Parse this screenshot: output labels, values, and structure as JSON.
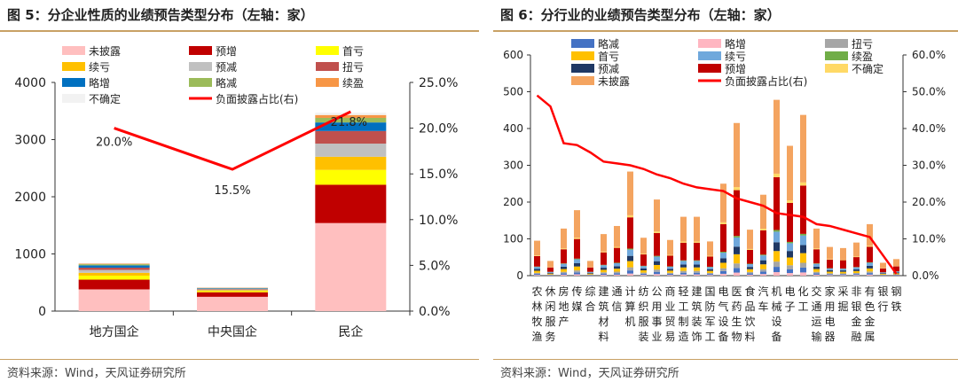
{
  "figures": [
    {
      "title": "图 5：分企业性质的业绩预告类型分布（左轴：家）",
      "source": "资料来源：Wind，天风证券研究所"
    },
    {
      "title": "图 6：分行业的业绩预告类型分布（左轴：家）",
      "source": "资料来源：Wind，天风证券研究所"
    }
  ],
  "colors": {
    "未披露": "#ffbfbf",
    "预增": "#c00000",
    "首亏": "#ffff00",
    "续亏": "#ffc000",
    "预减": "#c0c0c0",
    "扭亏": "#c0504d",
    "略增": "#0070c0",
    "略减": "#9bbb59",
    "续盈": "#f79646",
    "不确定": "#f2f2f2",
    "line": "#ff0000",
    "右_未披露": "#f4a460",
    "右_预增": "#c00000",
    "右_首亏": "#ffc000",
    "右_续亏": "#6fa8dc",
    "右_预减": "#1f3864",
    "右_扭亏": "#a6a6a6",
    "右_略增": "#ffb6c1",
    "右_略减": "#4472c4",
    "右_续盈": "#70ad47",
    "右_不确定": "#ffd966"
  },
  "chart_data": [
    {
      "type": "bar",
      "stacked": true,
      "categories": [
        "地方国企",
        "中央国企",
        "民企"
      ],
      "series": [
        {
          "name": "未披露",
          "values": [
            380,
            250,
            1540
          ]
        },
        {
          "name": "预增",
          "values": [
            170,
            80,
            670
          ]
        },
        {
          "name": "首亏",
          "values": [
            70,
            20,
            260
          ]
        },
        {
          "name": "续亏",
          "values": [
            50,
            15,
            230
          ]
        },
        {
          "name": "预减",
          "values": [
            50,
            15,
            230
          ]
        },
        {
          "name": "扭亏",
          "values": [
            40,
            10,
            220
          ]
        },
        {
          "name": "略增",
          "values": [
            40,
            10,
            150
          ]
        },
        {
          "name": "略减",
          "values": [
            20,
            5,
            80
          ]
        },
        {
          "name": "续盈",
          "values": [
            10,
            5,
            50
          ]
        },
        {
          "name": "不确定",
          "values": [
            10,
            5,
            40
          ]
        }
      ],
      "line": {
        "name": "负面披露占比(右)",
        "values": [
          20.0,
          15.5,
          21.8
        ],
        "labels": [
          "20.0%",
          "15.5%",
          "21.8%"
        ]
      },
      "y_left": {
        "range": [
          0,
          4000
        ],
        "ticks": [
          "0",
          "1000",
          "2000",
          "3000",
          "4000"
        ]
      },
      "y_right": {
        "range": [
          0,
          25
        ],
        "ticks": [
          "0.0%",
          "5.0%",
          "10.0%",
          "15.0%",
          "20.0%",
          "25.0%"
        ]
      },
      "legend": [
        [
          "未披露",
          "预增",
          "首亏"
        ],
        [
          "续亏",
          "预减",
          "扭亏"
        ],
        [
          "略增",
          "略减",
          "续盈"
        ],
        [
          "不确定",
          "负面披露占比(右)"
        ]
      ],
      "legend_placement": "top"
    },
    {
      "type": "bar",
      "stacked": true,
      "categories": [
        "农林牧渔",
        "休闲服务",
        "房地产",
        "传媒",
        "综合",
        "建筑材料",
        "通信",
        "计算机",
        "纺织服装",
        "公用事业",
        "商业贸易",
        "轻工制造",
        "建筑装饰",
        "国防军工",
        "电气设备",
        "医药生物",
        "食品饮料",
        "汽车",
        "机械设备",
        "电子",
        "化工",
        "交通运输",
        "家用电器",
        "采掘",
        "非银金融",
        "有色金属",
        "银行",
        "钢铁"
      ],
      "category_labels": [
        [
          "农",
          "林",
          "牧",
          "渔"
        ],
        [
          "休",
          "闲",
          "服",
          "务"
        ],
        [
          "房",
          "地",
          "产"
        ],
        [
          "传",
          "媒"
        ],
        [
          "综",
          "合"
        ],
        [
          "建",
          "筑",
          "材",
          "料"
        ],
        [
          "通",
          "信"
        ],
        [
          "计",
          "算",
          "机"
        ],
        [
          "纺",
          "织",
          "服",
          "装"
        ],
        [
          "公",
          "用",
          "事",
          "业"
        ],
        [
          "商",
          "业",
          "贸",
          "易"
        ],
        [
          "轻",
          "工",
          "制",
          "造"
        ],
        [
          "建",
          "筑",
          "装",
          "饰"
        ],
        [
          "国",
          "防",
          "军",
          "工"
        ],
        [
          "电",
          "气",
          "设",
          "备"
        ],
        [
          "医",
          "药",
          "生",
          "物"
        ],
        [
          "食",
          "品",
          "饮",
          "料"
        ],
        [
          "汽",
          "车"
        ],
        [
          "机",
          "械",
          "设",
          "备"
        ],
        [
          "电",
          "子"
        ],
        [
          "化",
          "工"
        ],
        [
          "交",
          "通",
          "运",
          "输"
        ],
        [
          "家",
          "用",
          "电",
          "器"
        ],
        [
          "采",
          "掘"
        ],
        [
          "非",
          "银",
          "金",
          "融"
        ],
        [
          "有",
          "色",
          "金",
          "属"
        ],
        [
          "银",
          "行"
        ],
        [
          "钢",
          "铁"
        ]
      ],
      "totals": [
        95,
        40,
        128,
        178,
        40,
        113,
        135,
        283,
        103,
        207,
        97,
        160,
        160,
        93,
        250,
        415,
        125,
        220,
        478,
        353,
        437,
        128,
        78,
        75,
        90,
        140,
        35,
        45
      ],
      "line": {
        "name": "负面披露占比(右)",
        "values": [
          49.0,
          46.0,
          36.0,
          35.5,
          33.5,
          31.0,
          30.5,
          30.0,
          29.0,
          27.5,
          26.5,
          25.0,
          24.0,
          23.5,
          23.0,
          21.0,
          20.0,
          19.0,
          17.0,
          16.5,
          16.0,
          14.0,
          13.5,
          12.5,
          11.5,
          10.5,
          5.5,
          0.5
        ]
      },
      "y_left": {
        "range": [
          0,
          600
        ],
        "ticks": [
          "0",
          "100",
          "200",
          "300",
          "400",
          "500",
          "600"
        ]
      },
      "y_right": {
        "range": [
          0,
          60
        ],
        "ticks": [
          "0.0%",
          "10.0%",
          "20.0%",
          "30.0%",
          "40.0%",
          "50.0%",
          "60.0%"
        ]
      },
      "legend": [
        [
          "略减",
          "略增",
          "扭亏"
        ],
        [
          "首亏",
          "续亏",
          "续盈"
        ],
        [
          "预减",
          "预增",
          "不确定"
        ],
        [
          "未披露",
          "负面披露占比(右)"
        ]
      ],
      "legend_placement": "top"
    }
  ]
}
